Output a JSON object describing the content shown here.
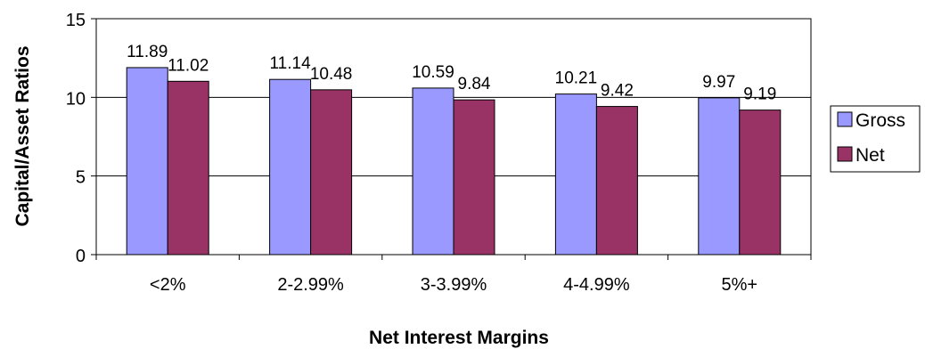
{
  "chart_data": {
    "type": "bar",
    "title": "",
    "xlabel": "Net Interest Margins",
    "ylabel": "Capital/Asset Ratios",
    "categories": [
      "<2%",
      "2-2.99%",
      "3-3.99%",
      "4-4.99%",
      "5%+"
    ],
    "series": [
      {
        "name": "Gross",
        "values": [
          11.89,
          11.14,
          10.59,
          10.21,
          9.97
        ],
        "color": "#9999FF"
      },
      {
        "name": "Net",
        "values": [
          11.02,
          10.48,
          9.84,
          9.42,
          9.19
        ],
        "color": "#993366"
      }
    ],
    "data_labels": [
      [
        "11.89",
        "11.14",
        "10.59",
        "10.21",
        "9.97"
      ],
      [
        "11.02",
        "10.48",
        "9.84",
        "9.42",
        "9.19"
      ]
    ],
    "ylim": [
      0,
      15
    ],
    "yticks": [
      0,
      5,
      10,
      15
    ],
    "ytick_labels": [
      "0",
      "5",
      "10",
      "15"
    ],
    "grid": true,
    "legend_position": "right"
  }
}
